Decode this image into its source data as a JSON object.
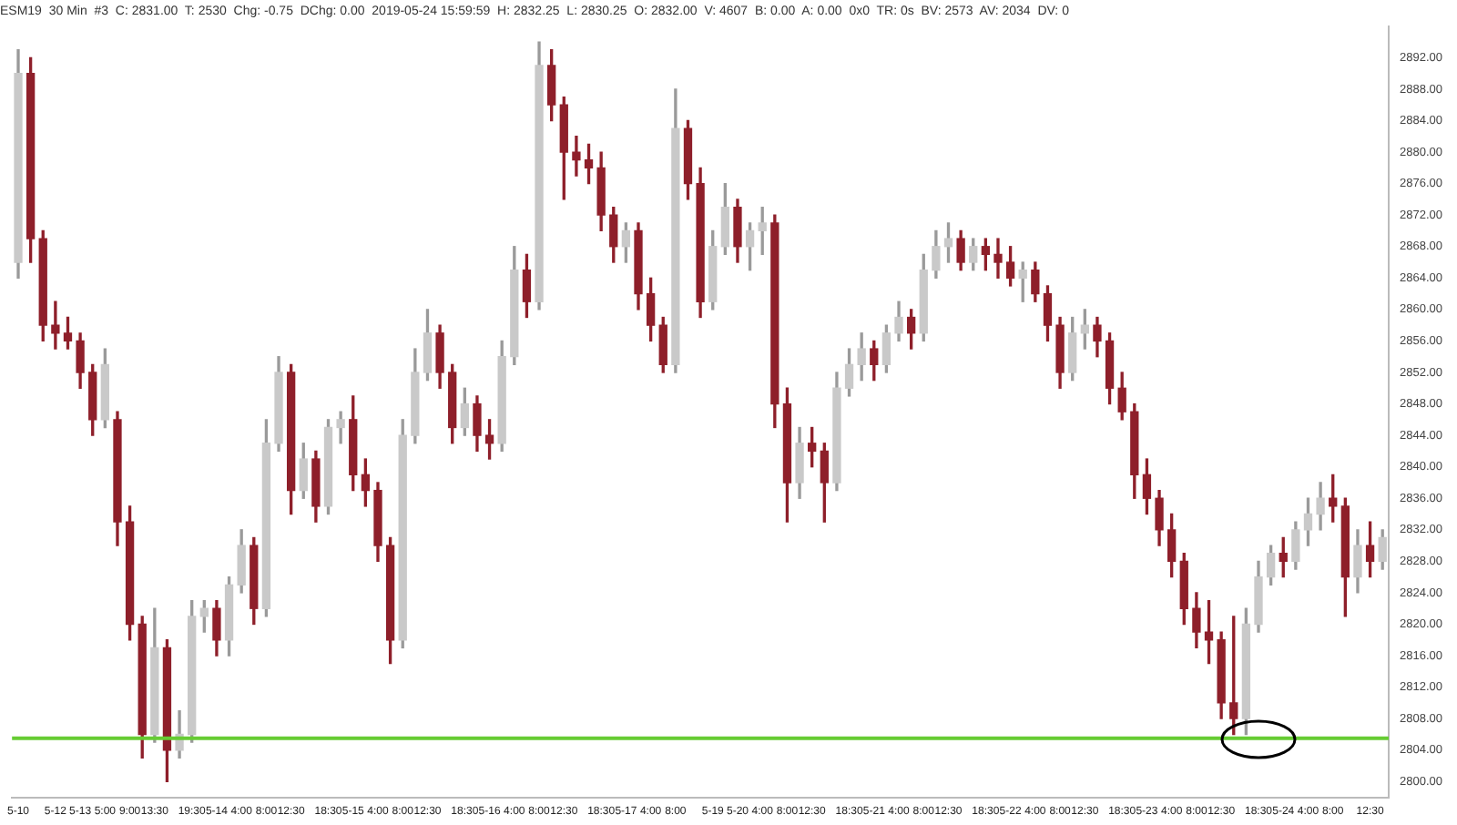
{
  "chart_data": {
    "type": "candlestick",
    "title": "ESM19  30 Min  #3  C: 2831.00  T: 2530  Chg: -0.75  DChg: 0.00  2019-05-24 15:59:59  H: 2832.25  L: 2830.25  O: 2832.00  V: 4607  B: 0.00  A: 0.00  0x0  TR: 0s  BV: 2573  AV: 2034  DV: 0",
    "categories": [
      "5-10",
      null,
      null,
      "5-12",
      null,
      "5-13",
      null,
      "5:00",
      null,
      "9:00",
      null,
      "13:30",
      null,
      null,
      "19:30",
      null,
      "5-14",
      null,
      "4:00",
      null,
      "8:00",
      null,
      "12:30",
      null,
      null,
      "18:30",
      null,
      "5-15",
      null,
      "4:00",
      null,
      "8:00",
      null,
      "12:30",
      null,
      null,
      "18:30",
      null,
      "5-16",
      null,
      "4:00",
      null,
      "8:00",
      null,
      "12:30",
      null,
      null,
      "18:30",
      null,
      "5-17",
      null,
      "4:00",
      null,
      "8:00",
      null,
      null,
      "5-19",
      null,
      "5-20",
      null,
      "4:00",
      null,
      "8:00",
      null,
      "12:30",
      null,
      null,
      "18:30",
      null,
      "5-21",
      null,
      "4:00",
      null,
      "8:00",
      null,
      "12:30",
      null,
      null,
      "18:30",
      null,
      "5-22",
      null,
      "4:00",
      null,
      "8:00",
      null,
      "12:30",
      null,
      null,
      "18:30",
      null,
      "5-23",
      null,
      "4:00",
      null,
      "8:00",
      null,
      "12:30",
      null,
      null,
      "18:30",
      null,
      "5-24",
      null,
      "4:00",
      null,
      "8:00",
      null,
      null,
      "12:30",
      null
    ],
    "ohlc": [
      [
        2866,
        2893,
        2864,
        2890
      ],
      [
        2890,
        2892,
        2866,
        2869
      ],
      [
        2869,
        2870,
        2856,
        2858
      ],
      [
        2858,
        2861,
        2855,
        2857
      ],
      [
        2857,
        2859,
        2855,
        2856
      ],
      [
        2856,
        2857,
        2850,
        2852
      ],
      [
        2852,
        2853,
        2844,
        2846
      ],
      [
        2846,
        2855,
        2845,
        2853
      ],
      [
        2846,
        2847,
        2830,
        2833
      ],
      [
        2833,
        2835,
        2818,
        2820
      ],
      [
        2820,
        2821,
        2803,
        2806
      ],
      [
        2806,
        2822,
        2805,
        2817
      ],
      [
        2817,
        2818,
        2800,
        2804
      ],
      [
        2804,
        2809,
        2803,
        2806
      ],
      [
        2806,
        2823,
        2805,
        2821
      ],
      [
        2821,
        2823,
        2819,
        2822
      ],
      [
        2822,
        2823,
        2816,
        2818
      ],
      [
        2818,
        2826,
        2816,
        2825
      ],
      [
        2825,
        2832,
        2824,
        2830
      ],
      [
        2830,
        2831,
        2820,
        2822
      ],
      [
        2822,
        2846,
        2821,
        2843
      ],
      [
        2843,
        2854,
        2842,
        2852
      ],
      [
        2852,
        2853,
        2834,
        2837
      ],
      [
        2837,
        2843,
        2836,
        2841
      ],
      [
        2841,
        2842,
        2833,
        2835
      ],
      [
        2835,
        2846,
        2834,
        2845
      ],
      [
        2845,
        2847,
        2843,
        2846
      ],
      [
        2846,
        2849,
        2837,
        2839
      ],
      [
        2839,
        2841,
        2835,
        2837
      ],
      [
        2837,
        2838,
        2828,
        2830
      ],
      [
        2830,
        2831,
        2815,
        2818
      ],
      [
        2818,
        2846,
        2817,
        2844
      ],
      [
        2844,
        2855,
        2843,
        2852
      ],
      [
        2852,
        2860,
        2851,
        2857
      ],
      [
        2857,
        2858,
        2850,
        2852
      ],
      [
        2852,
        2853,
        2843,
        2845
      ],
      [
        2845,
        2850,
        2844,
        2848
      ],
      [
        2848,
        2849,
        2842,
        2844
      ],
      [
        2844,
        2846,
        2841,
        2843
      ],
      [
        2843,
        2856,
        2842,
        2854
      ],
      [
        2854,
        2868,
        2853,
        2865
      ],
      [
        2865,
        2867,
        2859,
        2861
      ],
      [
        2861,
        2894,
        2860,
        2891
      ],
      [
        2891,
        2893,
        2884,
        2886
      ],
      [
        2886,
        2887,
        2874,
        2880
      ],
      [
        2880,
        2882,
        2877,
        2879
      ],
      [
        2879,
        2881,
        2876,
        2878
      ],
      [
        2878,
        2880,
        2870,
        2872
      ],
      [
        2872,
        2873,
        2866,
        2868
      ],
      [
        2868,
        2871,
        2866,
        2870
      ],
      [
        2870,
        2871,
        2860,
        2862
      ],
      [
        2862,
        2864,
        2856,
        2858
      ],
      [
        2858,
        2859,
        2852,
        2853
      ],
      [
        2853,
        2888,
        2852,
        2883
      ],
      [
        2883,
        2884,
        2874,
        2876
      ],
      [
        2876,
        2878,
        2859,
        2861
      ],
      [
        2861,
        2870,
        2860,
        2868
      ],
      [
        2868,
        2876,
        2867,
        2873
      ],
      [
        2873,
        2874,
        2866,
        2868
      ],
      [
        2868,
        2871,
        2865,
        2870
      ],
      [
        2870,
        2873,
        2867,
        2871
      ],
      [
        2871,
        2872,
        2845,
        2848
      ],
      [
        2848,
        2850,
        2833,
        2838
      ],
      [
        2838,
        2845,
        2836,
        2843
      ],
      [
        2843,
        2845,
        2840,
        2842
      ],
      [
        2842,
        2843,
        2833,
        2838
      ],
      [
        2838,
        2852,
        2837,
        2850
      ],
      [
        2850,
        2855,
        2849,
        2853
      ],
      [
        2853,
        2857,
        2851,
        2855
      ],
      [
        2855,
        2856,
        2851,
        2853
      ],
      [
        2853,
        2858,
        2852,
        2857
      ],
      [
        2857,
        2861,
        2856,
        2859
      ],
      [
        2859,
        2860,
        2855,
        2857
      ],
      [
        2857,
        2867,
        2856,
        2865
      ],
      [
        2865,
        2870,
        2864,
        2868
      ],
      [
        2868,
        2871,
        2866,
        2869
      ],
      [
        2869,
        2870,
        2865,
        2866
      ],
      [
        2866,
        2869,
        2865,
        2868
      ],
      [
        2868,
        2869,
        2865,
        2867
      ],
      [
        2867,
        2869,
        2864,
        2866
      ],
      [
        2866,
        2868,
        2863,
        2864
      ],
      [
        2864,
        2866,
        2861,
        2865
      ],
      [
        2865,
        2866,
        2861,
        2862
      ],
      [
        2862,
        2863,
        2856,
        2858
      ],
      [
        2858,
        2859,
        2850,
        2852
      ],
      [
        2852,
        2859,
        2851,
        2857
      ],
      [
        2857,
        2860,
        2855,
        2858
      ],
      [
        2858,
        2859,
        2854,
        2856
      ],
      [
        2856,
        2857,
        2848,
        2850
      ],
      [
        2850,
        2852,
        2846,
        2847
      ],
      [
        2847,
        2848,
        2836,
        2839
      ],
      [
        2839,
        2841,
        2834,
        2836
      ],
      [
        2836,
        2837,
        2830,
        2832
      ],
      [
        2832,
        2834,
        2826,
        2828
      ],
      [
        2828,
        2829,
        2820,
        2822
      ],
      [
        2822,
        2824,
        2817,
        2819
      ],
      [
        2819,
        2823,
        2815,
        2818
      ],
      [
        2818,
        2819,
        2808,
        2810
      ],
      [
        2810,
        2821,
        2806,
        2808
      ],
      [
        2808,
        2822,
        2806,
        2820
      ],
      [
        2820,
        2828,
        2819,
        2826
      ],
      [
        2826,
        2830,
        2825,
        2829
      ],
      [
        2829,
        2831,
        2826,
        2828
      ],
      [
        2828,
        2833,
        2827,
        2832
      ],
      [
        2832,
        2836,
        2830,
        2834
      ],
      [
        2834,
        2838,
        2832,
        2836
      ],
      [
        2836,
        2839,
        2833,
        2835
      ],
      [
        2835,
        2836,
        2821,
        2826
      ],
      [
        2826,
        2832,
        2824,
        2830
      ],
      [
        2830,
        2833,
        2826,
        2828
      ],
      [
        2828,
        2832,
        2827,
        2831
      ]
    ],
    "ylim": [
      2798,
      2896
    ],
    "yticks": [
      {
        "value": 2800,
        "label": "2800.00"
      },
      {
        "value": 2804,
        "label": "2804.00"
      },
      {
        "value": 2808,
        "label": "2808.00"
      },
      {
        "value": 2812,
        "label": "2812.00"
      },
      {
        "value": 2816,
        "label": "2816.00"
      },
      {
        "value": 2820,
        "label": "2820.00"
      },
      {
        "value": 2824,
        "label": "2824.00"
      },
      {
        "value": 2828,
        "label": "2828.00"
      },
      {
        "value": 2832,
        "label": "2832.00"
      },
      {
        "value": 2836,
        "label": "2836.00"
      },
      {
        "value": 2840,
        "label": "2840.00"
      },
      {
        "value": 2844,
        "label": "2844.00"
      },
      {
        "value": 2848,
        "label": "2848.00"
      },
      {
        "value": 2852,
        "label": "2852.00"
      },
      {
        "value": 2856,
        "label": "2856.00"
      },
      {
        "value": 2860,
        "label": "2860.00"
      },
      {
        "value": 2864,
        "label": "2864.00"
      },
      {
        "value": 2868,
        "label": "2868.00"
      },
      {
        "value": 2872,
        "label": "2872.00"
      },
      {
        "value": 2876,
        "label": "2876.00"
      },
      {
        "value": 2880,
        "label": "2880.00"
      },
      {
        "value": 2884,
        "label": "2884.00"
      },
      {
        "value": 2888,
        "label": "2888.00"
      },
      {
        "value": 2892,
        "label": "2892.00"
      }
    ],
    "ref_lines": [
      {
        "axis": "y",
        "value": 2805.5,
        "color": "#66cc33"
      }
    ],
    "grid": false,
    "legend": false
  }
}
